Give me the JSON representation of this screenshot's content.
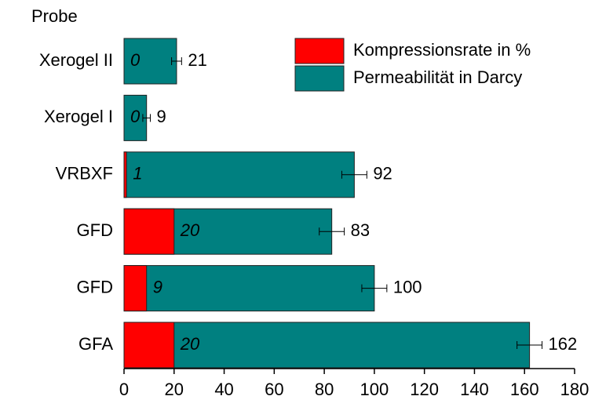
{
  "chart_data": {
    "type": "bar",
    "orientation": "horizontal",
    "ylabel": "Probe",
    "categories": [
      "Xerogel II",
      "Xerogel I",
      "VRBXF",
      "GFD",
      "GFD",
      "GFA"
    ],
    "series": [
      {
        "name": "Permeabilität in Darcy",
        "color": "#008080",
        "values": [
          21,
          9,
          92,
          83,
          100,
          162
        ],
        "errors": [
          2,
          1.5,
          5,
          5,
          5,
          5
        ]
      },
      {
        "name": "Kompressionsrate in %",
        "color": "#ff0000",
        "values": [
          0,
          0,
          1,
          20,
          9,
          20
        ]
      }
    ],
    "legend_order": [
      1,
      0
    ],
    "xlim": [
      0,
      180
    ],
    "xticks": [
      0,
      20,
      40,
      60,
      80,
      100,
      120,
      140,
      160,
      180
    ],
    "legend": "upper right"
  }
}
